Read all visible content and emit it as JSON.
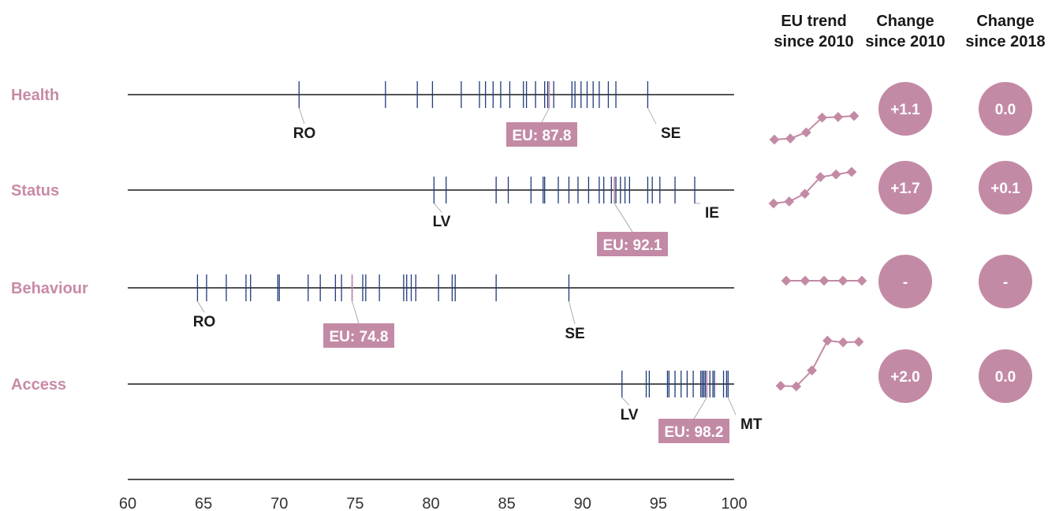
{
  "chart_data": {
    "type": "strip",
    "x_axis": {
      "min": 60,
      "max": 100,
      "ticks": [
        60,
        65,
        70,
        75,
        80,
        85,
        90,
        95,
        100
      ]
    },
    "headers": {
      "trend": [
        "EU trend",
        "since 2010"
      ],
      "change2010": [
        "Change",
        "since 2010"
      ],
      "change2018": [
        "Change",
        "since 2018"
      ]
    },
    "colors": {
      "accent": "#c38aa6",
      "ticks": "#1f3a7a",
      "axis": "#1a1a1a",
      "connector": "#999999"
    },
    "rows": [
      {
        "label": "Health",
        "country_values": [
          71.3,
          77.0,
          79.1,
          80.1,
          82.0,
          83.2,
          83.6,
          84.1,
          84.6,
          85.2,
          86.1,
          86.3,
          86.9,
          87.5,
          87.7,
          88.1,
          89.3,
          89.5,
          89.9,
          90.3,
          90.7,
          91.1,
          91.7,
          92.2,
          94.3
        ],
        "eu": {
          "value": 87.8,
          "label": "EU: 87.8"
        },
        "min": {
          "code": "RO",
          "value": 71.3
        },
        "max": {
          "code": "SE",
          "value": 94.3
        },
        "trend": [
          1,
          1.2,
          2.3,
          5,
          5.1,
          5.3
        ],
        "change_2010": "+1.1",
        "change_2018": "0.0"
      },
      {
        "label": "Status",
        "country_values": [
          80.2,
          81.0,
          84.3,
          85.1,
          86.6,
          87.4,
          87.5,
          88.4,
          89.1,
          89.7,
          90.4,
          91.1,
          91.4,
          91.9,
          92.2,
          92.5,
          92.8,
          93.1,
          94.3,
          94.6,
          95.1,
          96.1,
          97.4
        ],
        "eu": {
          "value": 92.1,
          "label": "EU: 92.1"
        },
        "min": {
          "code": "LV",
          "value": 80.2
        },
        "max": {
          "code": "IE",
          "value": 97.4
        },
        "trend": [
          1,
          1.3,
          2.5,
          5.1,
          5.5,
          5.9
        ],
        "change_2010": "+1.7",
        "change_2018": "+0.1"
      },
      {
        "label": "Behaviour",
        "country_values": [
          64.6,
          65.2,
          66.5,
          67.8,
          68.1,
          69.9,
          70.0,
          71.9,
          72.7,
          73.7,
          74.1,
          74.8,
          75.5,
          75.7,
          76.6,
          78.2,
          78.4,
          78.7,
          79.0,
          80.5,
          81.4,
          81.6,
          84.3,
          89.1
        ],
        "eu": {
          "value": 74.8,
          "label": "EU: 74.8"
        },
        "min": {
          "code": "RO",
          "value": 64.6
        },
        "max": {
          "code": "SE",
          "value": 89.1
        },
        "trend": [
          3,
          3,
          3,
          3,
          3
        ],
        "change_2010": "-",
        "change_2018": "-"
      },
      {
        "label": "Access",
        "country_values": [
          92.6,
          94.2,
          94.4,
          95.6,
          95.7,
          96.1,
          96.5,
          96.9,
          97.3,
          97.8,
          97.9,
          98.0,
          98.1,
          98.2,
          98.4,
          98.6,
          98.7,
          99.3,
          99.5,
          99.6
        ],
        "eu": {
          "value": 98.2,
          "label": "EU: 98.2"
        },
        "min": {
          "code": "LV",
          "value": 92.6
        },
        "max": {
          "code": "MT",
          "value": 99.6
        },
        "trend": [
          1,
          0.9,
          3.7,
          8.9,
          8.6,
          8.7
        ],
        "change_2010": "+2.0",
        "change_2018": "0.0"
      }
    ]
  }
}
